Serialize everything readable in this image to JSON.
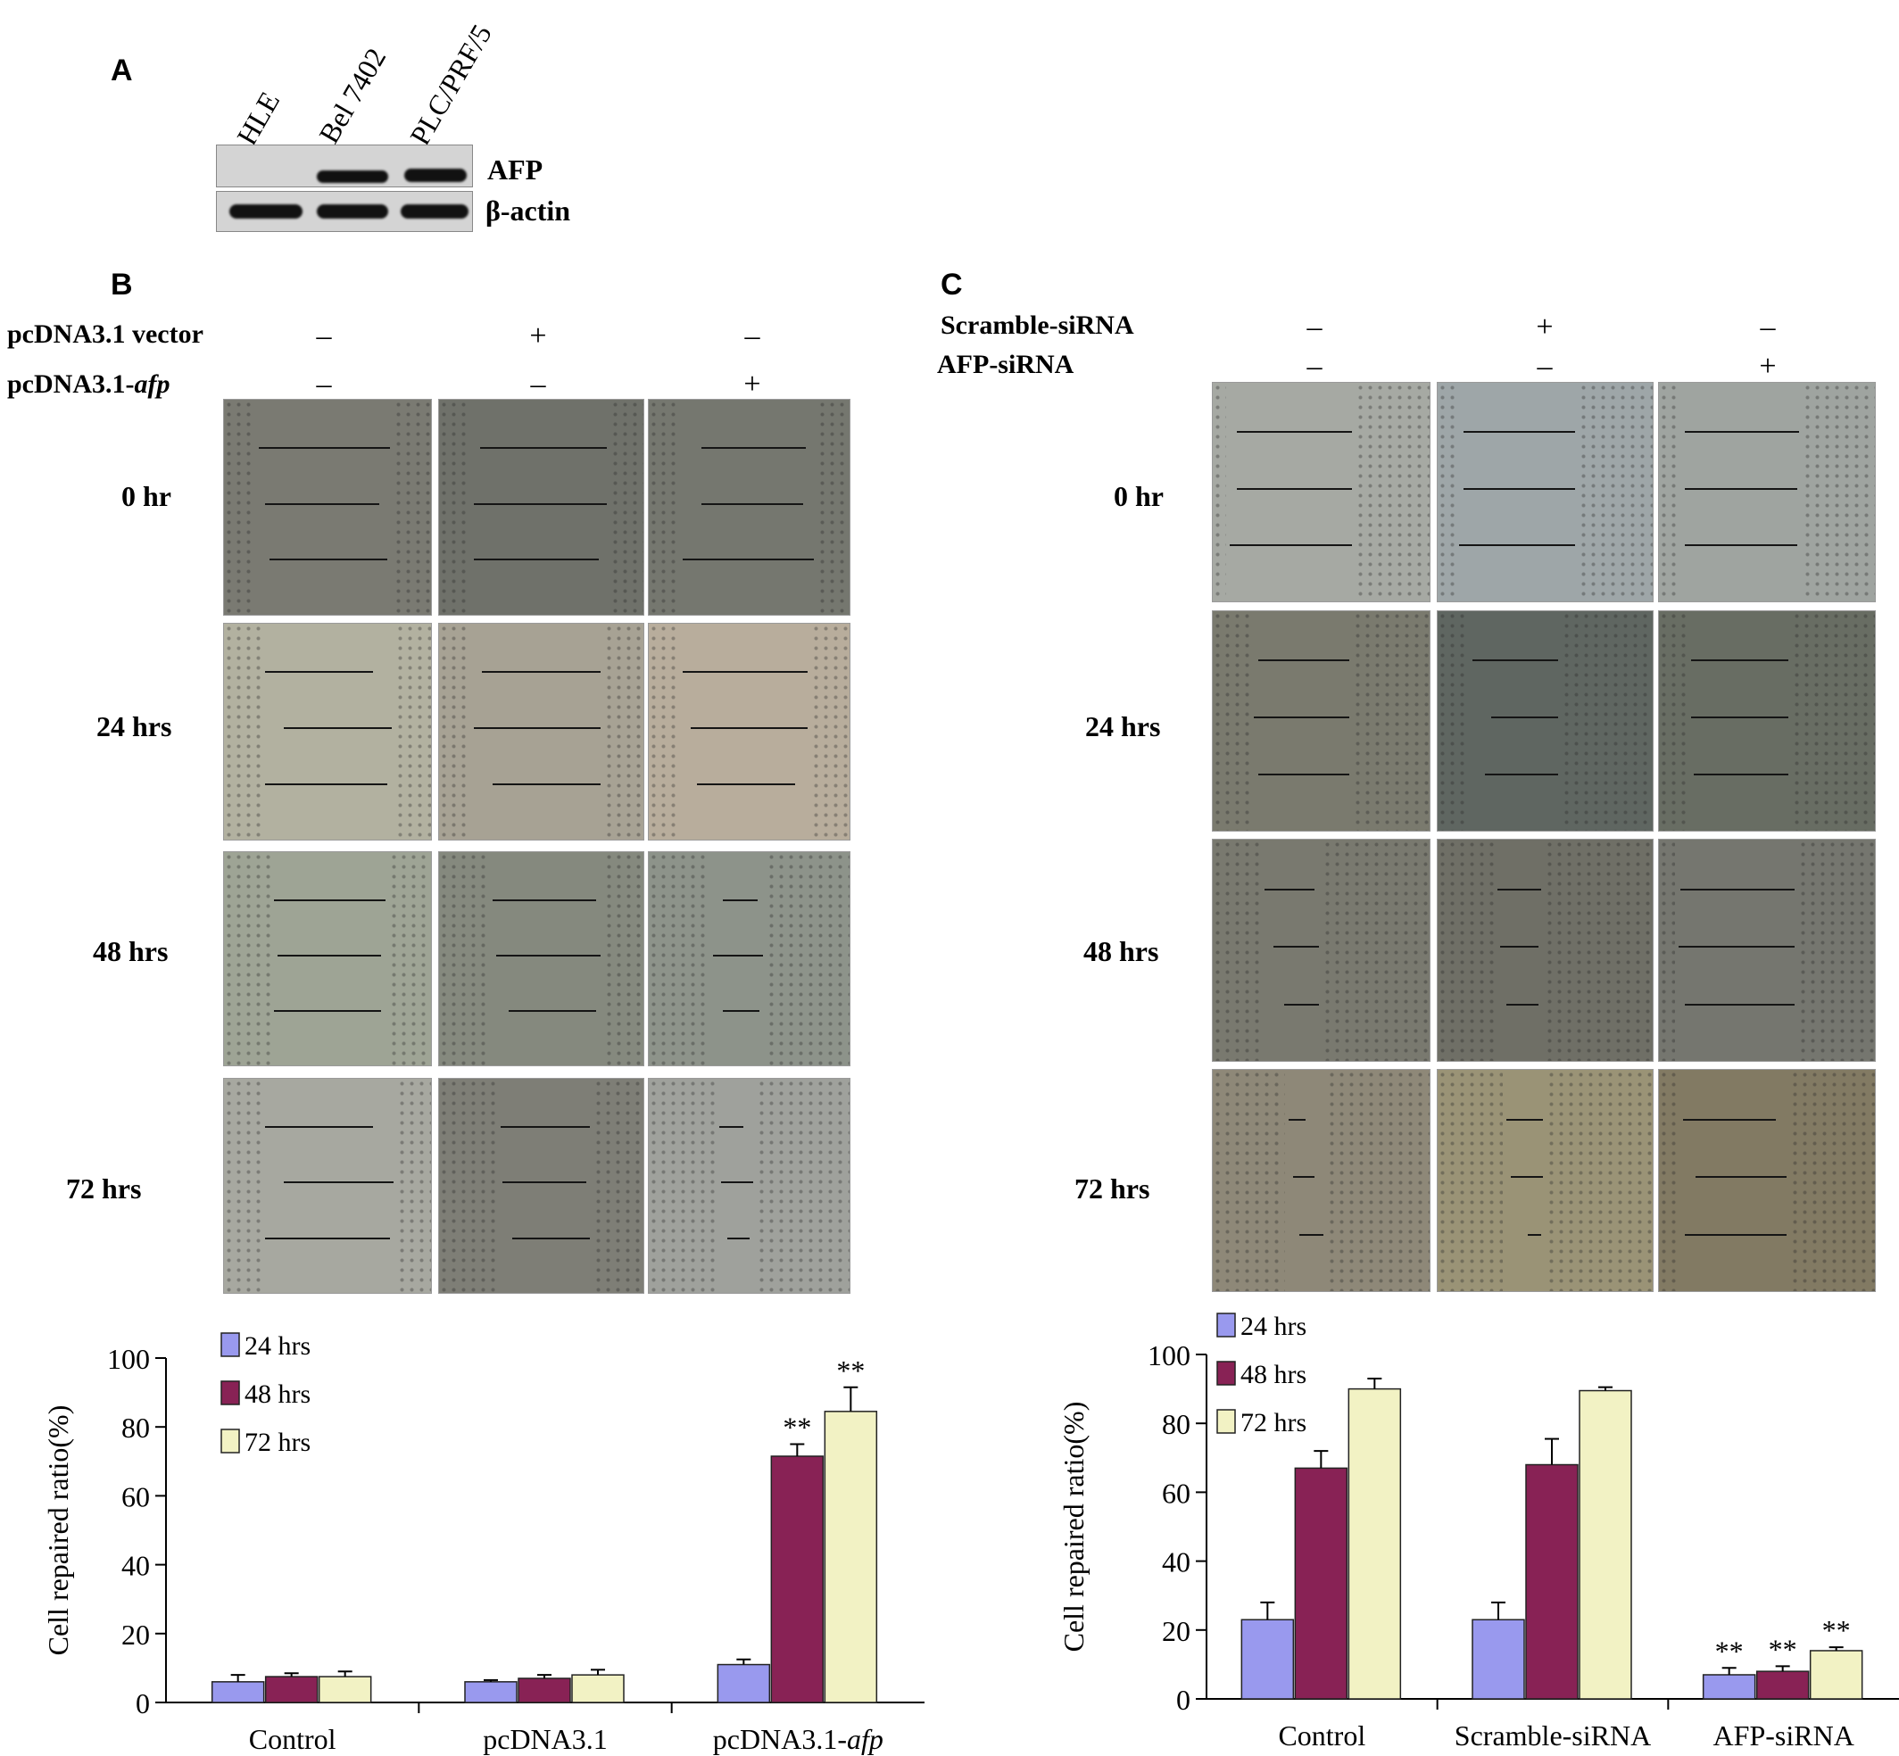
{
  "panel_a": {
    "letter": "A",
    "lanes": [
      "HLE",
      "Bel 7402",
      "PLC/PRF/5"
    ],
    "rows": [
      "AFP",
      "β-actin"
    ],
    "afp_lanes_with_band": [
      false,
      true,
      true
    ]
  },
  "panel_b": {
    "letter": "B",
    "conditions": [
      {
        "label": "pcDNA3.1 vector",
        "label_italic_suffix": "",
        "signs": [
          "–",
          "+",
          "–"
        ]
      },
      {
        "label": "pcDNA3.1-",
        "label_italic_suffix": "afp",
        "signs": [
          "–",
          "–",
          "+"
        ]
      }
    ],
    "timepoints": [
      "0 hr",
      "24 hrs",
      "48 hrs",
      "72 hrs"
    ]
  },
  "panel_c": {
    "letter": "C",
    "conditions": [
      {
        "label": "Scramble-siRNA",
        "label_italic_suffix": "",
        "signs": [
          "–",
          "+",
          "–"
        ]
      },
      {
        "label": "AFP-siRNA",
        "label_italic_suffix": "",
        "signs": [
          "–",
          "–",
          "+"
        ]
      }
    ],
    "timepoints": [
      "0 hr",
      "24 hrs",
      "48 hrs",
      "72 hrs"
    ]
  },
  "colors": {
    "s24": "#9999ee",
    "s48": "#882255",
    "s72": "#f2f2c4"
  },
  "chart_data": [
    {
      "type": "bar",
      "categories": [
        "Control",
        "pcDNA3.1",
        "pcDNA3.1-afp"
      ],
      "category_italic_suffix": [
        "",
        "",
        "afp"
      ],
      "series": [
        {
          "name": "24 hrs",
          "values": [
            6,
            6,
            11
          ],
          "errors": [
            2,
            0.5,
            1.5
          ],
          "sig": [
            "",
            "",
            ""
          ]
        },
        {
          "name": "48 hrs",
          "values": [
            7.5,
            7,
            71.5
          ],
          "errors": [
            1,
            1,
            3.5
          ],
          "sig": [
            "",
            "",
            "**"
          ]
        },
        {
          "name": "72 hrs",
          "values": [
            7.5,
            8,
            84.5
          ],
          "errors": [
            1.5,
            1.5,
            7
          ],
          "sig": [
            "",
            "",
            "**"
          ]
        }
      ],
      "xlabel": "",
      "ylabel": "Cell repaired ratio(%)",
      "ylim": [
        0,
        100
      ],
      "yticks": [
        0,
        20,
        40,
        60,
        80,
        100
      ],
      "legend": "top-left"
    },
    {
      "type": "bar",
      "categories": [
        "Control",
        "Scramble-siRNA",
        "AFP-siRNA"
      ],
      "category_italic_suffix": [
        "",
        "",
        ""
      ],
      "series": [
        {
          "name": "24 hrs",
          "values": [
            23,
            23,
            7
          ],
          "errors": [
            5,
            5,
            2
          ],
          "sig": [
            "",
            "",
            "**"
          ]
        },
        {
          "name": "48 hrs",
          "values": [
            67,
            68,
            8
          ],
          "errors": [
            5,
            7.5,
            1.5
          ],
          "sig": [
            "",
            "",
            "**"
          ]
        },
        {
          "name": "72 hrs",
          "values": [
            90,
            89.5,
            14
          ],
          "errors": [
            3,
            1,
            1
          ],
          "sig": [
            "",
            "",
            "**"
          ]
        }
      ],
      "xlabel": "",
      "ylabel": "Cell repaired ratio(%)",
      "ylim": [
        0,
        100
      ],
      "yticks": [
        0,
        20,
        40,
        60,
        80,
        100
      ],
      "legend": "top-left"
    }
  ]
}
